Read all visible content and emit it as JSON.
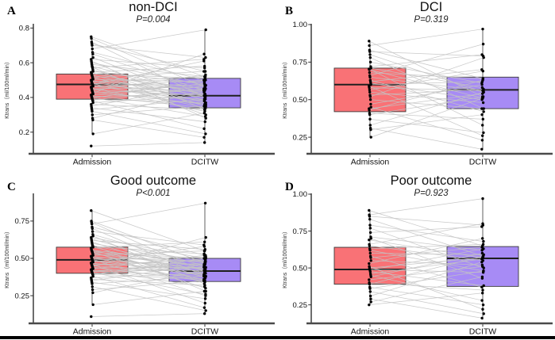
{
  "figure": {
    "y_axis_label": "Ktrans（ml/100ml/min）",
    "x_categories": [
      "Admission",
      "DCITW"
    ],
    "colors": {
      "admission_box": "#F97276",
      "dcitw_box": "#A78BF5",
      "box_border": "#3a3a3a",
      "median_line": "#1f1f1f",
      "pair_line": "#c3c3c3",
      "point": "#000000",
      "axis": "#4a4a4a",
      "tick_text": "#111111",
      "bottom_bar": "#000000"
    }
  },
  "chart_data": [
    {
      "type": "paired-boxplot",
      "panel_label": "A",
      "title": "non-DCI",
      "subtitle": "P=0.004",
      "ylabel": "Ktrans（ml/100ml/min）",
      "categories": [
        "Admission",
        "DCITW"
      ],
      "y_tick_values": [
        0.2,
        0.4,
        0.6,
        0.8
      ],
      "y_tick_labels": [
        "0.2",
        "0.4",
        "0.6",
        "0.8"
      ],
      "ylim": [
        0.08,
        0.82
      ],
      "boxes": {
        "admission": {
          "q1": 0.39,
          "median": 0.475,
          "q3": 0.535
        },
        "dcitw": {
          "q1": 0.34,
          "median": 0.41,
          "q3": 0.51
        }
      },
      "whiskers": {
        "admission": [
          0.19,
          0.75
        ],
        "dcitw": [
          0.14,
          0.79
        ]
      },
      "pairs": [
        [
          0.75,
          0.52
        ],
        [
          0.74,
          0.46
        ],
        [
          0.72,
          0.4
        ],
        [
          0.71,
          0.55
        ],
        [
          0.7,
          0.63
        ],
        [
          0.68,
          0.79
        ],
        [
          0.66,
          0.5
        ],
        [
          0.65,
          0.44
        ],
        [
          0.63,
          0.38
        ],
        [
          0.62,
          0.57
        ],
        [
          0.61,
          0.33
        ],
        [
          0.6,
          0.47
        ],
        [
          0.59,
          0.52
        ],
        [
          0.58,
          0.41
        ],
        [
          0.575,
          0.28
        ],
        [
          0.57,
          0.62
        ],
        [
          0.56,
          0.35
        ],
        [
          0.55,
          0.48
        ],
        [
          0.545,
          0.58
        ],
        [
          0.54,
          0.42
        ],
        [
          0.535,
          0.51
        ],
        [
          0.53,
          0.37
        ],
        [
          0.525,
          0.45
        ],
        [
          0.52,
          0.3
        ],
        [
          0.515,
          0.55
        ],
        [
          0.51,
          0.41
        ],
        [
          0.505,
          0.49
        ],
        [
          0.5,
          0.36
        ],
        [
          0.495,
          0.44
        ],
        [
          0.49,
          0.52
        ],
        [
          0.485,
          0.4
        ],
        [
          0.48,
          0.34
        ],
        [
          0.478,
          0.47
        ],
        [
          0.475,
          0.61
        ],
        [
          0.47,
          0.43
        ],
        [
          0.465,
          0.38
        ],
        [
          0.46,
          0.5
        ],
        [
          0.455,
          0.32
        ],
        [
          0.45,
          0.46
        ],
        [
          0.445,
          0.41
        ],
        [
          0.44,
          0.53
        ],
        [
          0.435,
          0.36
        ],
        [
          0.43,
          0.44
        ],
        [
          0.425,
          0.65
        ],
        [
          0.42,
          0.39
        ],
        [
          0.415,
          0.48
        ],
        [
          0.41,
          0.34
        ],
        [
          0.405,
          0.42
        ],
        [
          0.4,
          0.29
        ],
        [
          0.395,
          0.5
        ],
        [
          0.39,
          0.37
        ],
        [
          0.385,
          0.45
        ],
        [
          0.38,
          0.22
        ],
        [
          0.37,
          0.41
        ],
        [
          0.36,
          0.33
        ],
        [
          0.35,
          0.47
        ],
        [
          0.34,
          0.26
        ],
        [
          0.33,
          0.39
        ],
        [
          0.32,
          0.19
        ],
        [
          0.3,
          0.35
        ],
        [
          0.28,
          0.44
        ],
        [
          0.27,
          0.17
        ],
        [
          0.19,
          0.31
        ],
        [
          0.12,
          0.14
        ]
      ]
    },
    {
      "type": "paired-boxplot",
      "panel_label": "B",
      "title": "DCI",
      "subtitle": "P=0.319",
      "ylabel": "Ktrans（ml/100ml/min）",
      "categories": [
        "Admission",
        "DCITW"
      ],
      "y_tick_values": [
        0.25,
        0.5,
        0.75,
        1.0
      ],
      "y_tick_labels": [
        "0.25",
        "0.50",
        "0.75",
        "1.00"
      ],
      "ylim": [
        0.145,
        1.0
      ],
      "boxes": {
        "admission": {
          "q1": 0.42,
          "median": 0.6,
          "q3": 0.71
        },
        "dcitw": {
          "q1": 0.44,
          "median": 0.565,
          "q3": 0.65
        }
      },
      "whiskers": {
        "admission": [
          0.25,
          0.89
        ],
        "dcitw": [
          0.17,
          0.97
        ]
      },
      "pairs": [
        [
          0.89,
          0.52
        ],
        [
          0.86,
          0.97
        ],
        [
          0.83,
          0.64
        ],
        [
          0.82,
          0.79
        ],
        [
          0.8,
          0.55
        ],
        [
          0.78,
          0.44
        ],
        [
          0.75,
          0.61
        ],
        [
          0.72,
          0.8
        ],
        [
          0.71,
          0.58
        ],
        [
          0.705,
          0.33
        ],
        [
          0.7,
          0.51
        ],
        [
          0.68,
          0.64
        ],
        [
          0.66,
          0.87
        ],
        [
          0.65,
          0.56
        ],
        [
          0.63,
          0.42
        ],
        [
          0.62,
          0.7
        ],
        [
          0.61,
          0.5
        ],
        [
          0.6,
          0.62
        ],
        [
          0.59,
          0.26
        ],
        [
          0.58,
          0.56
        ],
        [
          0.565,
          0.69
        ],
        [
          0.55,
          0.48
        ],
        [
          0.53,
          0.57
        ],
        [
          0.52,
          0.78
        ],
        [
          0.5,
          0.44
        ],
        [
          0.47,
          0.6
        ],
        [
          0.45,
          0.23
        ],
        [
          0.44,
          0.54
        ],
        [
          0.43,
          0.63
        ],
        [
          0.41,
          0.37
        ],
        [
          0.4,
          0.52
        ],
        [
          0.37,
          0.28
        ],
        [
          0.33,
          0.55
        ],
        [
          0.31,
          0.17
        ],
        [
          0.3,
          0.4
        ],
        [
          0.25,
          0.51
        ]
      ]
    },
    {
      "type": "paired-boxplot",
      "panel_label": "C",
      "title": "Good outcome",
      "subtitle": "P<0.001",
      "ylabel": "Ktrans（ml/100ml/min）",
      "categories": [
        "Admission",
        "DCITW"
      ],
      "y_tick_values": [
        0.25,
        0.5,
        0.75
      ],
      "y_tick_labels": [
        "0.25",
        "0.50",
        "0.75"
      ],
      "ylim": [
        0.07,
        0.93
      ],
      "boxes": {
        "admission": {
          "q1": 0.4,
          "median": 0.49,
          "q3": 0.575
        },
        "dcitw": {
          "q1": 0.345,
          "median": 0.415,
          "q3": 0.5
        }
      },
      "whiskers": {
        "admission": [
          0.19,
          0.82
        ],
        "dcitw": [
          0.13,
          0.87
        ]
      },
      "pairs": [
        [
          0.82,
          0.55
        ],
        [
          0.75,
          0.47
        ],
        [
          0.74,
          0.41
        ],
        [
          0.73,
          0.87
        ],
        [
          0.71,
          0.52
        ],
        [
          0.7,
          0.38
        ],
        [
          0.68,
          0.59
        ],
        [
          0.66,
          0.45
        ],
        [
          0.65,
          0.33
        ],
        [
          0.64,
          0.5
        ],
        [
          0.63,
          0.42
        ],
        [
          0.62,
          0.56
        ],
        [
          0.61,
          0.37
        ],
        [
          0.6,
          0.48
        ],
        [
          0.59,
          0.28
        ],
        [
          0.585,
          0.44
        ],
        [
          0.58,
          0.53
        ],
        [
          0.575,
          0.4
        ],
        [
          0.57,
          0.61
        ],
        [
          0.56,
          0.35
        ],
        [
          0.555,
          0.47
        ],
        [
          0.55,
          0.42
        ],
        [
          0.545,
          0.3
        ],
        [
          0.54,
          0.5
        ],
        [
          0.535,
          0.38
        ],
        [
          0.53,
          0.45
        ],
        [
          0.52,
          0.55
        ],
        [
          0.515,
          0.41
        ],
        [
          0.51,
          0.34
        ],
        [
          0.505,
          0.48
        ],
        [
          0.5,
          0.43
        ],
        [
          0.495,
          0.25
        ],
        [
          0.49,
          0.51
        ],
        [
          0.485,
          0.39
        ],
        [
          0.48,
          0.46
        ],
        [
          0.475,
          0.58
        ],
        [
          0.47,
          0.36
        ],
        [
          0.465,
          0.43
        ],
        [
          0.46,
          0.2
        ],
        [
          0.455,
          0.49
        ],
        [
          0.45,
          0.4
        ],
        [
          0.445,
          0.64
        ],
        [
          0.44,
          0.35
        ],
        [
          0.435,
          0.44
        ],
        [
          0.43,
          0.52
        ],
        [
          0.425,
          0.31
        ],
        [
          0.42,
          0.42
        ],
        [
          0.415,
          0.38
        ],
        [
          0.41,
          0.47
        ],
        [
          0.405,
          0.26
        ],
        [
          0.4,
          0.44
        ],
        [
          0.395,
          0.36
        ],
        [
          0.39,
          0.5
        ],
        [
          0.38,
          0.17
        ],
        [
          0.37,
          0.4
        ],
        [
          0.36,
          0.32
        ],
        [
          0.35,
          0.46
        ],
        [
          0.34,
          0.23
        ],
        [
          0.33,
          0.38
        ],
        [
          0.31,
          0.15
        ],
        [
          0.29,
          0.35
        ],
        [
          0.27,
          0.42
        ],
        [
          0.19,
          0.28
        ],
        [
          0.11,
          0.13
        ]
      ]
    },
    {
      "type": "paired-boxplot",
      "panel_label": "D",
      "title": "Poor outcome",
      "subtitle": "P=0.923",
      "ylabel": "Ktrans（ml/100ml/min）",
      "categories": [
        "Admission",
        "DCITW"
      ],
      "y_tick_values": [
        0.25,
        0.5,
        0.75,
        1.0
      ],
      "y_tick_labels": [
        "0.25",
        "0.50",
        "0.75",
        "1.00"
      ],
      "ylim": [
        0.13,
        1.0
      ],
      "boxes": {
        "admission": {
          "q1": 0.39,
          "median": 0.49,
          "q3": 0.64
        },
        "dcitw": {
          "q1": 0.375,
          "median": 0.565,
          "q3": 0.645
        }
      },
      "whiskers": {
        "admission": [
          0.25,
          0.89
        ],
        "dcitw": [
          0.15,
          0.97
        ]
      },
      "pairs": [
        [
          0.89,
          0.65
        ],
        [
          0.86,
          0.97
        ],
        [
          0.85,
          0.79
        ],
        [
          0.83,
          0.58
        ],
        [
          0.79,
          0.68
        ],
        [
          0.77,
          0.5
        ],
        [
          0.74,
          0.78
        ],
        [
          0.71,
          0.62
        ],
        [
          0.7,
          0.43
        ],
        [
          0.69,
          0.57
        ],
        [
          0.66,
          0.8
        ],
        [
          0.65,
          0.55
        ],
        [
          0.63,
          0.66
        ],
        [
          0.62,
          0.48
        ],
        [
          0.6,
          0.59
        ],
        [
          0.58,
          0.37
        ],
        [
          0.57,
          0.64
        ],
        [
          0.55,
          0.52
        ],
        [
          0.53,
          0.7
        ],
        [
          0.51,
          0.22
        ],
        [
          0.5,
          0.57
        ],
        [
          0.49,
          0.47
        ],
        [
          0.485,
          0.63
        ],
        [
          0.475,
          0.38
        ],
        [
          0.46,
          0.56
        ],
        [
          0.45,
          0.28
        ],
        [
          0.44,
          0.6
        ],
        [
          0.42,
          0.51
        ],
        [
          0.4,
          0.35
        ],
        [
          0.39,
          0.58
        ],
        [
          0.37,
          0.25
        ],
        [
          0.36,
          0.48
        ],
        [
          0.34,
          0.19
        ],
        [
          0.31,
          0.54
        ],
        [
          0.29,
          0.16
        ],
        [
          0.27,
          0.44
        ],
        [
          0.25,
          0.33
        ]
      ]
    }
  ]
}
